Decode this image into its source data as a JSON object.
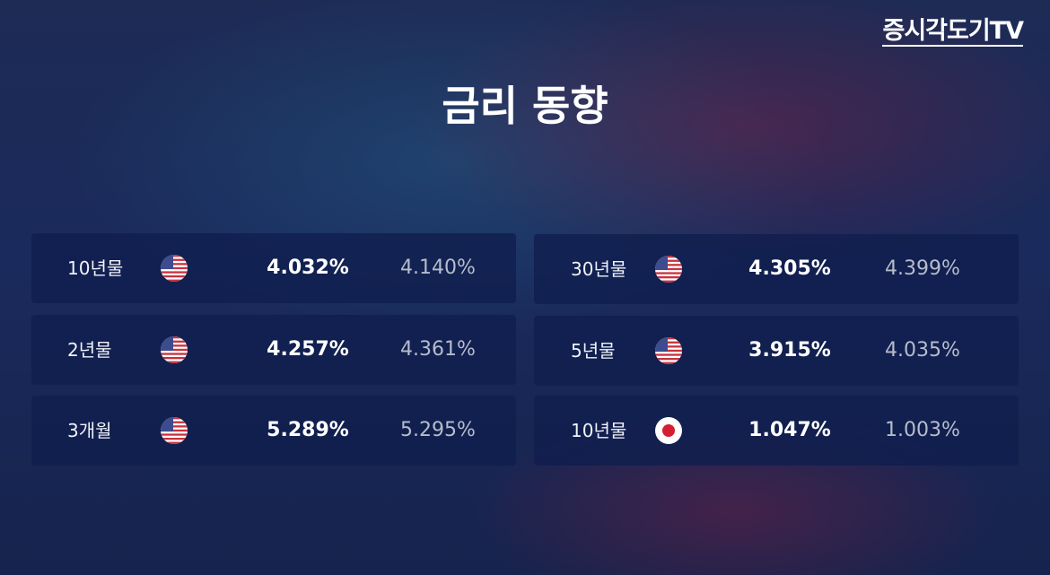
{
  "logo": "증시각도기TV",
  "title": "금리 동향",
  "rates": {
    "left": [
      {
        "term": "10년물",
        "value": "4.032%",
        "previous": "4.140%"
      },
      {
        "term": "2년물",
        "value": "4.257%",
        "previous": "4.361%"
      },
      {
        "term": "3개월",
        "value": "5.289%",
        "previous": "5.295%"
      }
    ],
    "right": [
      {
        "term": "30년물",
        "value": "4.305%",
        "previous": "4.399%"
      },
      {
        "term": "5년물",
        "value": "3.915%",
        "previous": "4.035%"
      },
      {
        "term": "10년물",
        "value": "1.047%",
        "previous": "1.003%"
      }
    ]
  }
}
